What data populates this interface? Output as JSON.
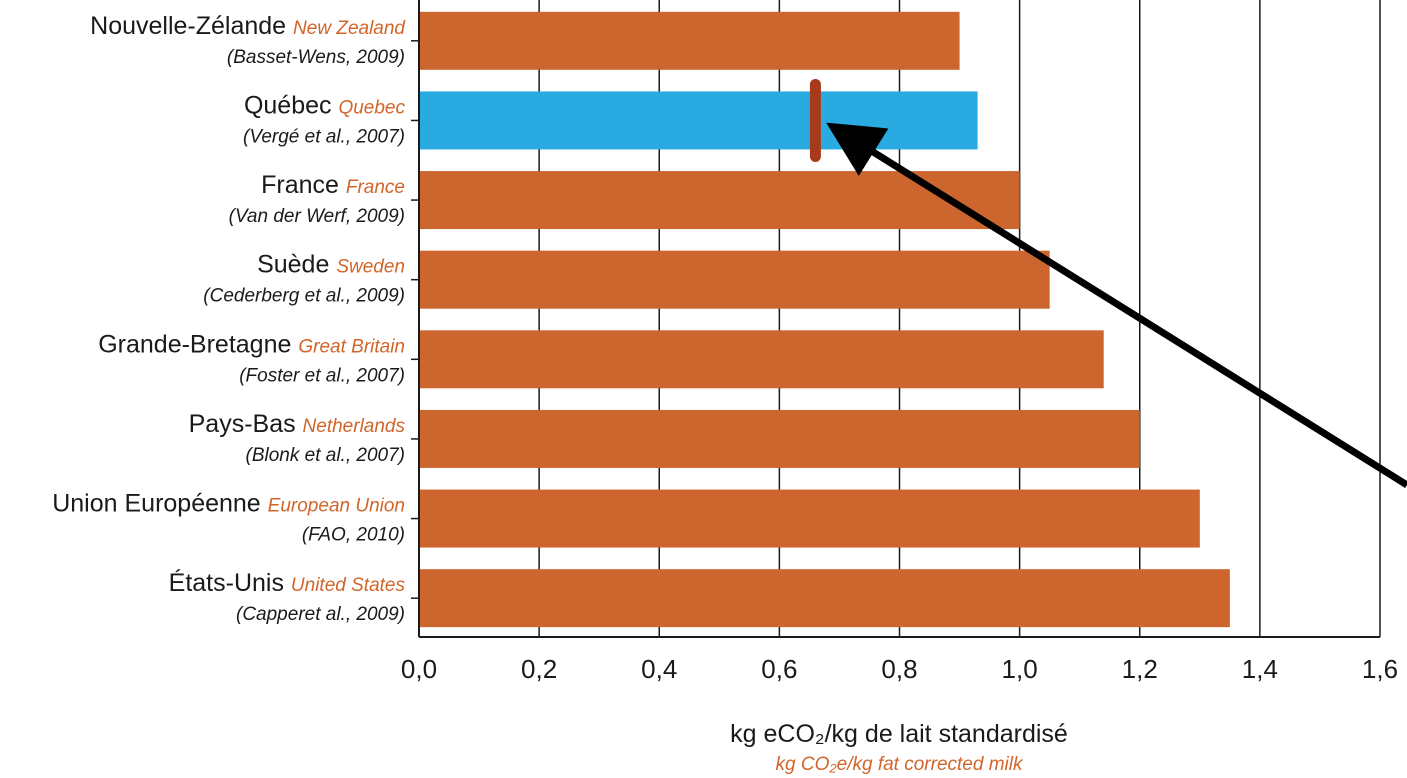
{
  "chart_data": {
    "type": "bar",
    "orientation": "horizontal",
    "categories": [
      {
        "fr": "Nouvelle-Zélande",
        "en": "New Zealand",
        "source": "(Basset-Wens, 2009)",
        "value": 0.9,
        "highlight": false
      },
      {
        "fr": "Québec",
        "en": "Quebec",
        "source": "(Vergé et al., 2007)",
        "value": 0.93,
        "highlight": true
      },
      {
        "fr": "France",
        "en": "France",
        "source": "(Van der Werf, 2009)",
        "value": 1.0,
        "highlight": false
      },
      {
        "fr": "Suède",
        "en": "Sweden",
        "source": "(Cederberg et al., 2009)",
        "value": 1.05,
        "highlight": false
      },
      {
        "fr": "Grande-Bretagne",
        "en": "Great Britain",
        "source": "(Foster et al., 2007)",
        "value": 1.14,
        "highlight": false
      },
      {
        "fr": "Pays-Bas",
        "en": "Netherlands",
        "source": "(Blonk et al., 2007)",
        "value": 1.2,
        "highlight": false
      },
      {
        "fr": "Union Européenne",
        "en": "European Union",
        "source": "(FAO, 2010)",
        "value": 1.3,
        "highlight": false
      },
      {
        "fr": "États-Unis",
        "en": "United States",
        "source": "(Capperet al., 2009)",
        "value": 1.35,
        "highlight": false
      }
    ],
    "xlim": [
      0,
      1.6
    ],
    "xticks": [
      "0,0",
      "0,2",
      "0,4",
      "0,6",
      "0,8",
      "1,0",
      "1,2",
      "1,4",
      "1,6"
    ],
    "xlabel_fr": "kg eCO₂/kg de lait standardisé",
    "xlabel_en": "kg CO₂e/kg fat corrected milk",
    "grid": "vertical",
    "marker": {
      "value": 0.66,
      "category": "Québec"
    },
    "annotation": "arrow pointing to marker"
  },
  "colors": {
    "bar": "#cc652e",
    "highlight_bar": "#29abe2",
    "english_label": "#d2652a",
    "marker": "#a83a1c",
    "arrow": "#000000",
    "grid": "#1a1a1a"
  }
}
